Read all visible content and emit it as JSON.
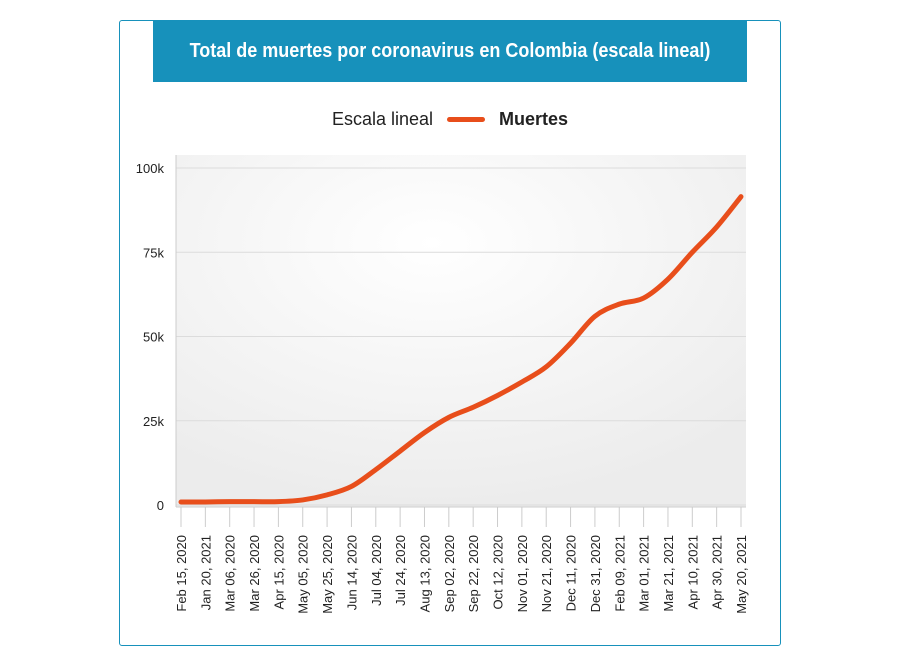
{
  "chart_data": {
    "type": "line",
    "title": "Total de muertes por coronavirus en Colombia (escala lineal)",
    "legend_title": "Escala lineal",
    "legend_position": "top",
    "xlabel": "",
    "ylabel": "",
    "ylim": [
      0,
      100000
    ],
    "y_ticks": [
      "0",
      "25k",
      "50k",
      "75k",
      "100k"
    ],
    "grid": true,
    "categories": [
      "Feb 15, 2020",
      "Jan 20, 2021",
      "Mar 06, 2020",
      "Mar 26, 2020",
      "Apr 15, 2020",
      "May 05, 2020",
      "May 25, 2020",
      "Jun 14, 2020",
      "Jul 04, 2020",
      "Jul 24, 2020",
      "Aug 13, 2020",
      "Sep 02, 2020",
      "Sep 22, 2020",
      "Oct 12, 2020",
      "Nov 01, 2020",
      "Nov 21, 2020",
      "Dec 11, 2020",
      "Dec 31, 2020",
      "Feb 09, 2021",
      "Mar 01, 2021",
      "Mar 21, 2021",
      "Apr 10, 2021",
      "Apr 30, 2021",
      "May 20, 2021"
    ],
    "series": [
      {
        "name": "Muertes",
        "color": "#e84e1b",
        "values": [
          900,
          900,
          1000,
          1000,
          1000,
          1500,
          3000,
          5500,
          10500,
          16000,
          21500,
          26000,
          29000,
          32500,
          36500,
          41000,
          48000,
          56000,
          59600,
          61400,
          67000,
          75000,
          82500,
          91500
        ]
      }
    ]
  }
}
